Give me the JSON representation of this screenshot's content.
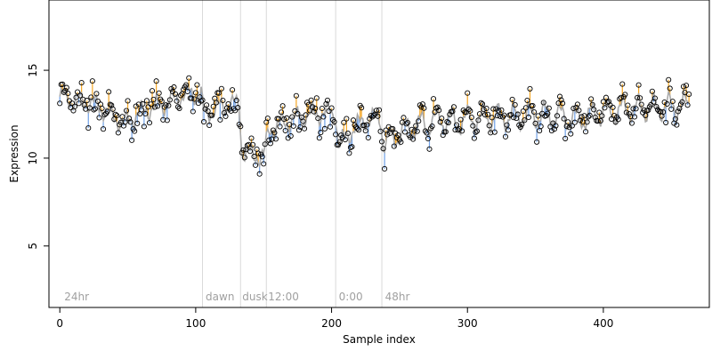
{
  "chart_data": {
    "type": "scatter",
    "title": "",
    "xlabel": "Sample index",
    "ylabel": "Expression",
    "xlim": [
      -8,
      478
    ],
    "ylim": [
      1.5,
      19.0
    ],
    "x_ticks": [
      0,
      100,
      200,
      300,
      400
    ],
    "y_ticks": [
      5,
      10,
      15
    ],
    "grid": false,
    "phase_labels": [
      {
        "x": 2,
        "label": "24hr"
      },
      {
        "x": 106,
        "label": "dawn"
      },
      {
        "x": 133,
        "label": "dusk"
      },
      {
        "x": 152,
        "label": "12:00"
      },
      {
        "x": 204,
        "label": "0:00"
      },
      {
        "x": 238,
        "label": "48hr"
      }
    ],
    "phase_boundaries": [
      105,
      133,
      152,
      203,
      237
    ],
    "fitted_anchors": [
      [
        0,
        13.5
      ],
      [
        10,
        13.3
      ],
      [
        20,
        13.2
      ],
      [
        30,
        12.9
      ],
      [
        40,
        12.3
      ],
      [
        48,
        12.0
      ],
      [
        55,
        12.4
      ],
      [
        65,
        12.8
      ],
      [
        75,
        13.0
      ],
      [
        85,
        13.4
      ],
      [
        95,
        13.7
      ],
      [
        104,
        13.6
      ],
      [
        106,
        12.5
      ],
      [
        115,
        12.8
      ],
      [
        125,
        13.1
      ],
      [
        132,
        13.0
      ],
      [
        134,
        10.4
      ],
      [
        140,
        10.2
      ],
      [
        150,
        10.1
      ],
      [
        154,
        11.6
      ],
      [
        165,
        12.0
      ],
      [
        175,
        12.3
      ],
      [
        185,
        12.5
      ],
      [
        196,
        12.6
      ],
      [
        203,
        12.5
      ],
      [
        205,
        10.7
      ],
      [
        215,
        11.6
      ],
      [
        225,
        12.2
      ],
      [
        236,
        12.3
      ],
      [
        238,
        10.8
      ],
      [
        250,
        11.4
      ],
      [
        260,
        11.8
      ],
      [
        270,
        12.0
      ],
      [
        280,
        12.2
      ],
      [
        290,
        12.1
      ],
      [
        300,
        12.2
      ],
      [
        320,
        12.3
      ],
      [
        340,
        12.4
      ],
      [
        360,
        12.5
      ],
      [
        380,
        12.2
      ],
      [
        400,
        12.6
      ],
      [
        420,
        12.8
      ],
      [
        440,
        12.9
      ],
      [
        462,
        13.0
      ]
    ],
    "fit_amplitude": 0.45,
    "n_samples": 464,
    "marker_positive_color": "#f5a623",
    "marker_negative_color": "#6fa0e6",
    "fitted_line_color": "#a9a9a9",
    "boundary_color": "#d9d9d9",
    "label_color": "#a0a0a0",
    "point_color": "#000000"
  }
}
